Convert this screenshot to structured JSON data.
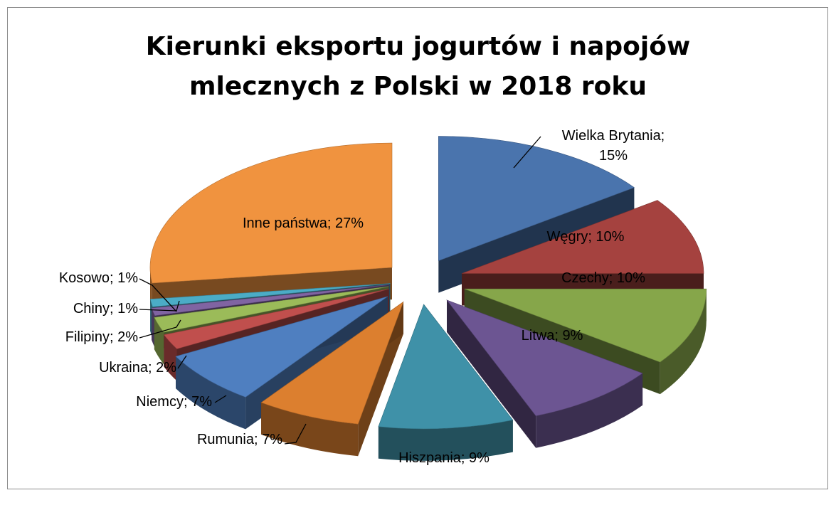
{
  "chart_data": {
    "type": "pie",
    "variant": "3d-exploded",
    "title_lines": [
      "Kierunki eksportu jogurtów i napojów",
      "mlecznych z Polski w 2018 roku"
    ],
    "slices": [
      {
        "name": "Wielka Brytania",
        "value": 15,
        "label": "Wielka Brytania;|15%",
        "color": "#4a74ad"
      },
      {
        "name": "Węgry",
        "value": 10,
        "label": "Węgry; 10%",
        "color": "#a5423f"
      },
      {
        "name": "Czechy",
        "value": 10,
        "label": "Czechy; 10%",
        "color": "#86a64a"
      },
      {
        "name": "Litwa",
        "value": 9,
        "label": "Litwa; 9%",
        "color": "#6c5592"
      },
      {
        "name": "Hiszpania",
        "value": 9,
        "label": "Hiszpania; 9%",
        "color": "#3f91a8"
      },
      {
        "name": "Rumunia",
        "value": 7,
        "label": "Rumunia; 7%",
        "color": "#dc7f2f"
      },
      {
        "name": "Niemcy",
        "value": 7,
        "label": "Niemcy; 7%",
        "color": "#4f7fc0"
      },
      {
        "name": "Ukraina",
        "value": 2,
        "label": "Ukraina; 2%",
        "color": "#c04f4d"
      },
      {
        "name": "Filipiny",
        "value": 2,
        "label": "Filipiny; 2%",
        "color": "#9bbb59"
      },
      {
        "name": "Chiny",
        "value": 1,
        "label": "Chiny; 1%",
        "color": "#8064a2"
      },
      {
        "name": "Kosowo",
        "value": 1,
        "label": "Kosowo; 1%",
        "color": "#4bacc6"
      },
      {
        "name": "Inne państwa",
        "value": 27,
        "label": "Inne państwa; 27%",
        "color": "#f0933f"
      }
    ]
  }
}
